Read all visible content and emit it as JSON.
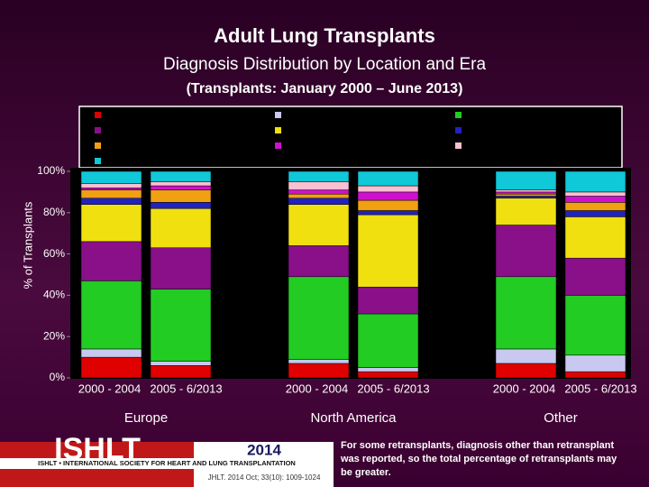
{
  "chart_data": {
    "type": "stacked_bar",
    "title": "Adult Lung Transplants",
    "subtitle": "Diagnosis Distribution by Location and Era",
    "subtitle2": "(Transplants: January 2000 – June 2013)",
    "ylabel": "% of Transplants",
    "categories": [
      "2000 - 2004",
      "2005 - 6/2013",
      "2000 - 2004",
      "2005 - 6/2013",
      "2000 - 2004",
      "2005 - 6/2013"
    ],
    "groups": [
      "Europe",
      "North America",
      "Other"
    ],
    "ylim": [
      0,
      100
    ],
    "yticks": [
      {
        "value": 0,
        "label": "0%"
      },
      {
        "value": 20,
        "label": "20%"
      },
      {
        "value": 40,
        "label": "40%"
      },
      {
        "value": 60,
        "label": "60%"
      },
      {
        "value": 80,
        "label": "80%"
      },
      {
        "value": 100,
        "label": "100%"
      }
    ],
    "series": [
      {
        "color": "#e00000",
        "values": [
          10,
          6,
          7,
          3,
          7,
          3
        ]
      },
      {
        "color": "#c8c8f0",
        "values": [
          4,
          2,
          2,
          2,
          7,
          8
        ]
      },
      {
        "color": "#22cc22",
        "values": [
          33,
          35,
          40,
          26,
          35,
          29
        ]
      },
      {
        "color": "#8a108a",
        "values": [
          19,
          20,
          15,
          13,
          25,
          18
        ]
      },
      {
        "color": "#f0e010",
        "values": [
          18,
          19,
          20,
          35,
          13,
          20
        ]
      },
      {
        "color": "#2222c0",
        "values": [
          3,
          3,
          3,
          2,
          1,
          3
        ]
      },
      {
        "color": "#f0a010",
        "values": [
          4,
          6,
          2,
          5,
          1,
          4
        ]
      },
      {
        "color": "#d010d0",
        "values": [
          1,
          2,
          2,
          4,
          1,
          3
        ]
      },
      {
        "color": "#f8c0d0",
        "values": [
          2,
          2,
          4,
          3,
          1,
          2
        ]
      },
      {
        "color": "#10c8d8",
        "values": [
          6,
          5,
          5,
          7,
          9,
          10
        ]
      }
    ]
  },
  "footer": {
    "logo": "ISHLT",
    "society": "ISHLT • INTERNATIONAL SOCIETY FOR HEART AND LUNG TRANSPLANTATION",
    "year": "2014",
    "citation": "JHLT. 2014 Oct; 33(10): 1009-1024",
    "note": "For some retransplants, diagnosis other than retransplant was reported, so the total percentage of retransplants may be greater."
  }
}
